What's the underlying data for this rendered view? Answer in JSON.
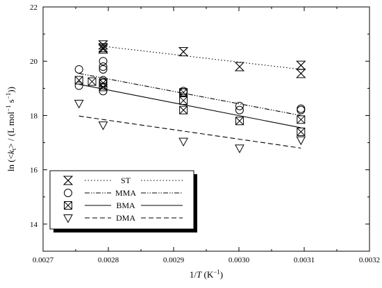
{
  "chart_data": {
    "type": "scatter",
    "xlabel": "1/T (K⁻¹)",
    "ylabel": "ln (<kₜ> / (L mol⁻¹ s⁻¹))",
    "xlim": [
      0.0027,
      0.0032
    ],
    "ylim": [
      13,
      22
    ],
    "x_ticks": [
      "0.0027",
      "0.0028",
      "0.0029",
      "0.0030",
      "0.0031",
      "0.0032"
    ],
    "y_ticks": [
      "14",
      "16",
      "18",
      "20",
      "22"
    ],
    "x_tick_values": [
      0.0027,
      0.0028,
      0.0029,
      0.003,
      0.0031,
      0.0032
    ],
    "y_tick_values": [
      14,
      16,
      18,
      20,
      22
    ],
    "legend_placement": "bottom-left",
    "series": [
      {
        "name": "ST",
        "marker": "star-x",
        "line": "dotted",
        "points": [
          [
            0.002792,
            20.6
          ],
          [
            0.002792,
            20.5
          ],
          [
            0.002792,
            20.45
          ],
          [
            0.002915,
            20.35
          ],
          [
            0.003001,
            19.8
          ],
          [
            0.003095,
            19.85
          ],
          [
            0.003095,
            19.55
          ]
        ],
        "fit": [
          [
            0.002792,
            20.55
          ],
          [
            0.003095,
            19.7
          ]
        ]
      },
      {
        "name": "MMA",
        "marker": "circle",
        "line": "dash-dot-dot",
        "points": [
          [
            0.002755,
            19.7
          ],
          [
            0.002755,
            19.1
          ],
          [
            0.002792,
            20.0
          ],
          [
            0.002792,
            19.8
          ],
          [
            0.002792,
            19.7
          ],
          [
            0.002792,
            19.3
          ],
          [
            0.002792,
            19.2
          ],
          [
            0.002792,
            18.9
          ],
          [
            0.002915,
            18.9
          ],
          [
            0.002915,
            18.85
          ],
          [
            0.003001,
            18.35
          ],
          [
            0.003001,
            18.2
          ],
          [
            0.003095,
            18.25
          ],
          [
            0.003095,
            18.2
          ]
        ],
        "fit": [
          [
            0.002755,
            19.55
          ],
          [
            0.003095,
            18.0
          ]
        ]
      },
      {
        "name": "BMA",
        "marker": "box-x",
        "line": "solid",
        "points": [
          [
            0.002755,
            19.3
          ],
          [
            0.002775,
            19.25
          ],
          [
            0.002792,
            19.2
          ],
          [
            0.002792,
            19.05
          ],
          [
            0.002915,
            18.85
          ],
          [
            0.002915,
            18.55
          ],
          [
            0.002915,
            18.2
          ],
          [
            0.003001,
            17.8
          ],
          [
            0.003095,
            17.85
          ],
          [
            0.003095,
            17.4
          ]
        ],
        "fit": [
          [
            0.002755,
            19.15
          ],
          [
            0.003095,
            17.55
          ]
        ]
      },
      {
        "name": "DMA",
        "marker": "triangle-down",
        "line": "dashed",
        "points": [
          [
            0.002755,
            18.45
          ],
          [
            0.002792,
            17.65
          ],
          [
            0.002915,
            17.05
          ],
          [
            0.003001,
            16.8
          ],
          [
            0.003095,
            17.1
          ]
        ],
        "fit": [
          [
            0.002755,
            17.98
          ],
          [
            0.003095,
            16.8
          ]
        ]
      }
    ]
  }
}
